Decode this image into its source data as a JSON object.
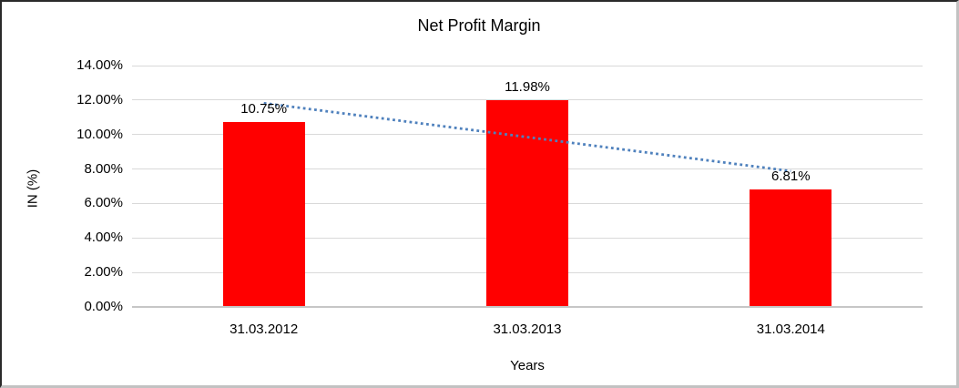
{
  "chart_data": {
    "type": "bar",
    "title": "Net Profit Margin",
    "xlabel": "Years",
    "ylabel": "IN (%)",
    "categories": [
      "31.03.2012",
      "31.03.2013",
      "31.03.2014"
    ],
    "values": [
      10.75,
      11.98,
      6.81
    ],
    "data_labels": [
      "10.75%",
      "11.98%",
      "6.81%"
    ],
    "y_ticks": [
      {
        "value": 0,
        "label": "0.00%"
      },
      {
        "value": 2,
        "label": "2.00%"
      },
      {
        "value": 4,
        "label": "4.00%"
      },
      {
        "value": 6,
        "label": "6.00%"
      },
      {
        "value": 8,
        "label": "8.00%"
      },
      {
        "value": 10,
        "label": "10.00%"
      },
      {
        "value": 12,
        "label": "12.00%"
      },
      {
        "value": 14,
        "label": "14.00%"
      }
    ],
    "ylim": [
      0,
      14
    ],
    "grid": true,
    "legend": "none",
    "bar_color": "#FF0000",
    "trendline": {
      "type": "linear",
      "style": "dotted",
      "color": "#4F81BD",
      "fit_values": [
        11.82,
        9.85,
        7.88
      ]
    }
  },
  "colors": {
    "gridline": "#D9D9D9",
    "axis_line": "#C6C6C6",
    "background": "#FFFFFF",
    "text": "#000000"
  }
}
